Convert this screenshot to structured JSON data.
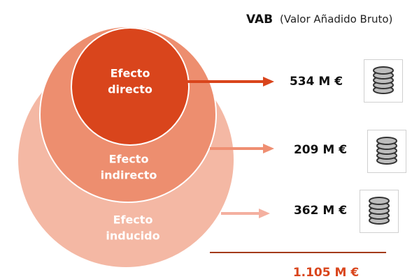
{
  "header": {
    "title": "VAB",
    "subtitle": "(Valor Añadido Bruto)"
  },
  "effects": [
    {
      "label": [
        "Efecto",
        "directo"
      ],
      "value": "534 M €"
    },
    {
      "label": [
        "Efecto",
        "indirecto"
      ],
      "value": "209 M €"
    },
    {
      "label": [
        "Efecto",
        "inducido"
      ],
      "value": "362 M €"
    }
  ],
  "total": "1.105 M €"
}
